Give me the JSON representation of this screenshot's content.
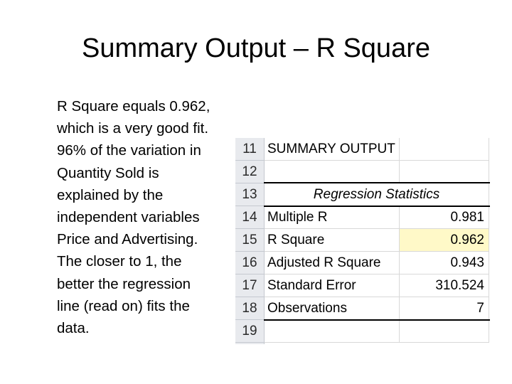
{
  "slide": {
    "title": "Summary Output – R Square",
    "body_lines": [
      "R Square equals 0.962,",
      "which is a very good fit.",
      "96% of the variation in",
      "Quantity Sold is",
      "explained by the",
      "independent variables",
      "Price and Advertising.",
      "The closer to 1, the",
      "better the regression",
      "line (read on) fits the",
      "data."
    ]
  },
  "spreadsheet": {
    "rows": [
      {
        "num": "11",
        "label": "SUMMARY OUTPUT",
        "value": ""
      },
      {
        "num": "12",
        "label": "",
        "value": ""
      },
      {
        "num": "13",
        "label": "Regression Statistics",
        "value": ""
      },
      {
        "num": "14",
        "label": "Multiple R",
        "value": "0.981"
      },
      {
        "num": "15",
        "label": "R Square",
        "value": "0.962"
      },
      {
        "num": "16",
        "label": "Adjusted R Square",
        "value": "0.943"
      },
      {
        "num": "17",
        "label": "Standard Error",
        "value": "310.524"
      },
      {
        "num": "18",
        "label": "Observations",
        "value": "7"
      },
      {
        "num": "19",
        "label": "",
        "value": ""
      }
    ],
    "highlight_color": "#fff9c8"
  }
}
